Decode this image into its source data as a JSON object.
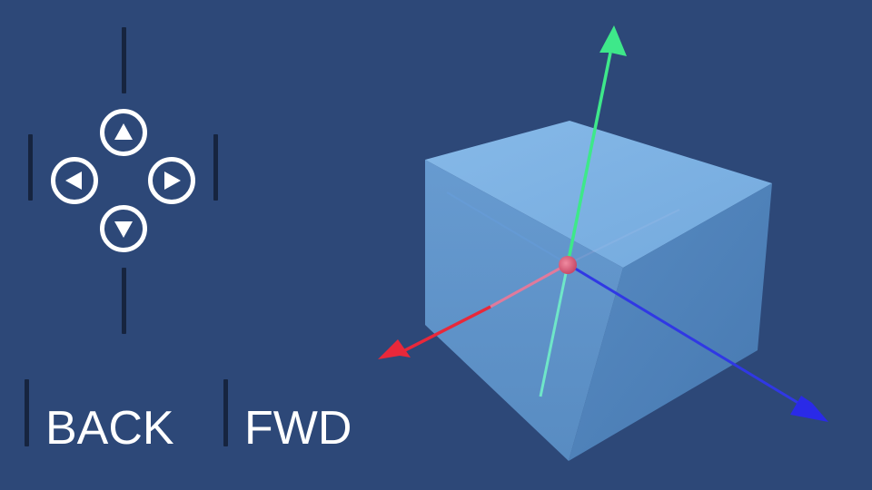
{
  "controls": {
    "back_label": "BACK",
    "fwd_label": "FWD",
    "dpad": {
      "up": "up-arrow-icon",
      "left": "left-arrow-icon",
      "right": "right-arrow-icon",
      "down": "down-arrow-icon"
    }
  },
  "colors": {
    "background": "#2d4878",
    "control_white": "#ffffff",
    "separator_dark": "#16243f",
    "cube_face": "#7fb6ea",
    "axis_x": "#e8283a",
    "axis_y": "#3ee88a",
    "axis_z": "#2a2ae8",
    "origin_marker": "#e0607a"
  }
}
